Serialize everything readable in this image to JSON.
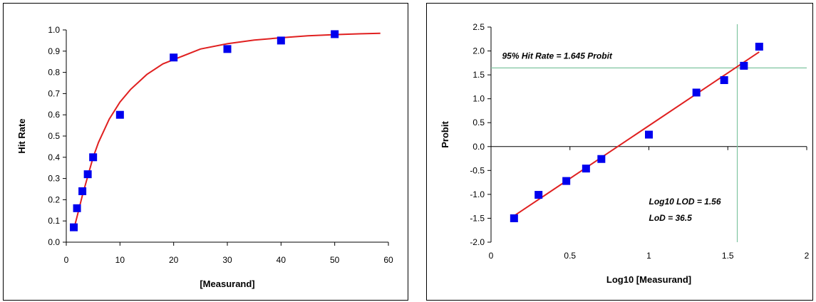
{
  "chart_data": [
    {
      "type": "scatter",
      "title": "",
      "xlabel": "[Measurand]",
      "ylabel": "Hit Rate",
      "xlim": [
        0,
        60
      ],
      "ylim": [
        0,
        1.0
      ],
      "x_ticks": [
        "0",
        "10",
        "20",
        "30",
        "40",
        "50",
        "60"
      ],
      "y_ticks": [
        "0.0",
        "0.1",
        "0.2",
        "0.3",
        "0.4",
        "0.5",
        "0.6",
        "0.7",
        "0.8",
        "0.9",
        "1.0"
      ],
      "grid": false,
      "colors": {
        "points": "#0000ee",
        "fit": "#e02020"
      },
      "series": [
        {
          "values": [
            {
              "x": 1.4,
              "y": 0.07
            },
            {
              "x": 2,
              "y": 0.16
            },
            {
              "x": 3,
              "y": 0.24
            },
            {
              "x": 4,
              "y": 0.32
            },
            {
              "x": 5,
              "y": 0.4
            },
            {
              "x": 10,
              "y": 0.6
            },
            {
              "x": 20,
              "y": 0.87
            },
            {
              "x": 30,
              "y": 0.91
            },
            {
              "x": 40,
              "y": 0.95
            },
            {
              "x": 50,
              "y": 0.98
            }
          ]
        }
      ],
      "fit_line": {
        "type": "curve",
        "points": [
          {
            "x": 1.4,
            "y": 0.06
          },
          {
            "x": 2,
            "y": 0.12
          },
          {
            "x": 3,
            "y": 0.22
          },
          {
            "x": 4,
            "y": 0.31
          },
          {
            "x": 5,
            "y": 0.4
          },
          {
            "x": 6,
            "y": 0.47
          },
          {
            "x": 8,
            "y": 0.58
          },
          {
            "x": 10,
            "y": 0.66
          },
          {
            "x": 12,
            "y": 0.72
          },
          {
            "x": 15,
            "y": 0.79
          },
          {
            "x": 18,
            "y": 0.84
          },
          {
            "x": 20,
            "y": 0.86
          },
          {
            "x": 25,
            "y": 0.91
          },
          {
            "x": 30,
            "y": 0.935
          },
          {
            "x": 35,
            "y": 0.952
          },
          {
            "x": 40,
            "y": 0.963
          },
          {
            "x": 45,
            "y": 0.972
          },
          {
            "x": 50,
            "y": 0.978
          },
          {
            "x": 55,
            "y": 0.982
          },
          {
            "x": 58.5,
            "y": 0.984
          }
        ]
      },
      "annotations": []
    },
    {
      "type": "scatter",
      "title": "",
      "xlabel": "Log10 [Measurand]",
      "ylabel": "Probit",
      "xlim": [
        0,
        2
      ],
      "ylim": [
        -2.0,
        2.5
      ],
      "x_ticks": [
        "0",
        "0.5",
        "1",
        "1.5",
        "2"
      ],
      "y_ticks": [
        "-2.0",
        "-1.5",
        "-1.0",
        "-0.5",
        "0.0",
        "0.5",
        "1.0",
        "1.5",
        "2.0",
        "2.5"
      ],
      "grid": false,
      "colors": {
        "points": "#0000ee",
        "fit": "#e02020",
        "reference": "#7fc4a0"
      },
      "series": [
        {
          "values": [
            {
              "x": 0.146,
              "y": -1.5
            },
            {
              "x": 0.301,
              "y": -1.01
            },
            {
              "x": 0.477,
              "y": -0.72
            },
            {
              "x": 0.602,
              "y": -0.46
            },
            {
              "x": 0.699,
              "y": -0.26
            },
            {
              "x": 1.0,
              "y": 0.25
            },
            {
              "x": 1.301,
              "y": 1.13
            },
            {
              "x": 1.477,
              "y": 1.39
            },
            {
              "x": 1.602,
              "y": 1.69
            },
            {
              "x": 1.699,
              "y": 2.09
            }
          ]
        }
      ],
      "fit_line": {
        "type": "line",
        "points": [
          {
            "x": 0.146,
            "y": -1.45
          },
          {
            "x": 1.699,
            "y": 1.98
          }
        ]
      },
      "reference_lines": {
        "hline_y": 1.645,
        "vline_x": 1.56
      },
      "annotations": [
        {
          "text": "95% Hit Rate = 1.645 Probit",
          "x": 0.07,
          "y": 1.84
        },
        {
          "text": "Log10 LOD = 1.56",
          "x": 1.0,
          "y": -1.21
        },
        {
          "text": "LoD = 36.5",
          "x": 1.0,
          "y": -1.55
        }
      ]
    }
  ]
}
